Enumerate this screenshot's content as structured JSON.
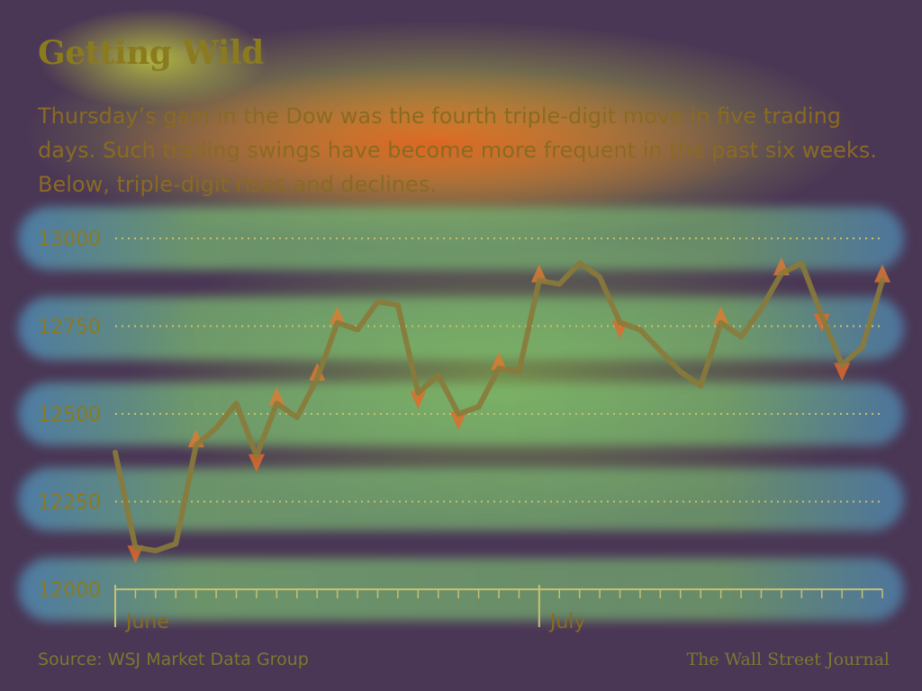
{
  "chart_data": {
    "type": "line",
    "title": "Getting Wild",
    "subtitle": "Thursday’s gain in the Dow was the fourth triple-digit move in five trading days. Such trading swings have become more frequent in the past six weeks. Below, triple-digit rises and declines.",
    "ylim": [
      12000,
      13000
    ],
    "yticks": [
      13000,
      12750,
      12500,
      12250,
      12000
    ],
    "month_labels": [
      "June",
      "July"
    ],
    "grid": true,
    "series": [
      {
        "values": [
          12390,
          12120,
          12110,
          12130,
          12410,
          12460,
          12530,
          12380,
          12530,
          12490,
          12600,
          12760,
          12740,
          12820,
          12810,
          12560,
          12610,
          12500,
          12520,
          12630,
          12620,
          12880,
          12870,
          12930,
          12890,
          12760,
          12740,
          12680,
          12620,
          12580,
          12760,
          12720,
          12800,
          12900,
          12930,
          12780,
          12640,
          12690,
          12880
        ]
      }
    ],
    "source": "Source: WSJ Market Data Group",
    "credit": "The Wall Street Journal",
    "colors": {
      "line": "#8a7a3a",
      "text": "#8a7a20",
      "grid": "#c8c070"
    }
  }
}
